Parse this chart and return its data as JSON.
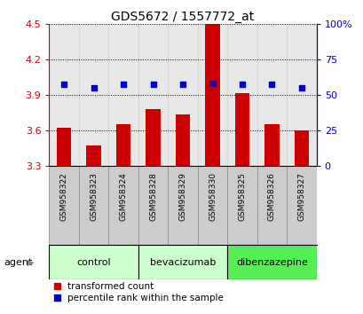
{
  "title": "GDS5672 / 1557772_at",
  "samples": [
    "GSM958322",
    "GSM958323",
    "GSM958324",
    "GSM958328",
    "GSM958329",
    "GSM958330",
    "GSM958325",
    "GSM958326",
    "GSM958327"
  ],
  "bar_values": [
    3.62,
    3.47,
    3.65,
    3.78,
    3.73,
    4.5,
    3.91,
    3.65,
    3.6
  ],
  "dot_percentiles": [
    57,
    55,
    57,
    57,
    57,
    58,
    57,
    57,
    55
  ],
  "ylim": [
    3.3,
    4.5
  ],
  "y2lim": [
    0,
    100
  ],
  "yticks": [
    3.3,
    3.6,
    3.9,
    4.2,
    4.5
  ],
  "ytick_labels": [
    "3.3",
    "3.6",
    "3.9",
    "4.2",
    "4.5"
  ],
  "y2ticks": [
    0,
    25,
    50,
    75,
    100
  ],
  "y2tick_labels": [
    "0",
    "25",
    "50",
    "75",
    "100%"
  ],
  "bar_color": "#cc0000",
  "dot_color": "#0000cc",
  "bar_base": 3.3,
  "groups": [
    {
      "label": "control",
      "start": 0,
      "end": 2,
      "color": "#ccffcc"
    },
    {
      "label": "bevacizumab",
      "start": 3,
      "end": 5,
      "color": "#ccffcc"
    },
    {
      "label": "dibenzazepine",
      "start": 6,
      "end": 8,
      "color": "#55ee55"
    }
  ],
  "agent_label": "agent",
  "legend_bar_label": "transformed count",
  "legend_dot_label": "percentile rank within the sample",
  "title_color": "#000000",
  "bar_color_left_axis": "#cc0000",
  "dot_color_right_axis": "#0000cc",
  "sample_box_color": "#cccccc",
  "sample_box_edge": "#888888"
}
